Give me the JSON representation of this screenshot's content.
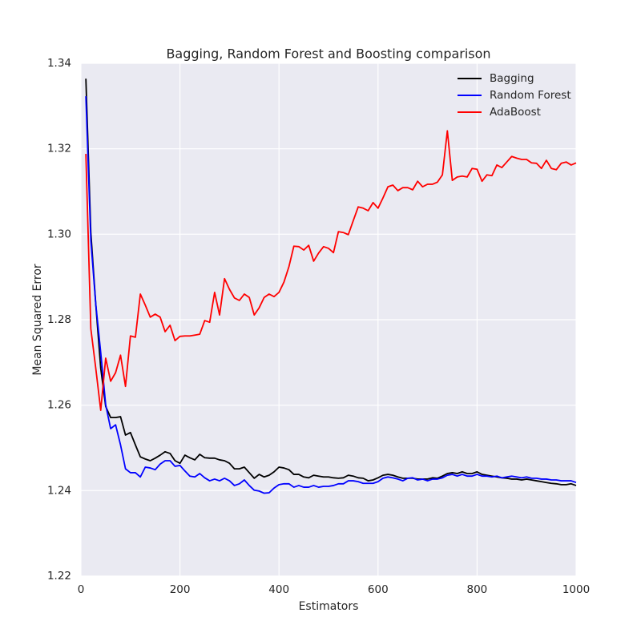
{
  "chart_data": {
    "type": "line",
    "title": "Bagging, Random Forest and Boosting comparison",
    "x_label": "Estimators",
    "y_label": "Mean Squared Error",
    "x": [
      10,
      20,
      30,
      40,
      50,
      60,
      70,
      80,
      90,
      100,
      110,
      120,
      130,
      140,
      150,
      160,
      170,
      180,
      190,
      200,
      210,
      220,
      230,
      240,
      250,
      260,
      270,
      280,
      290,
      300,
      310,
      320,
      330,
      340,
      350,
      360,
      370,
      380,
      390,
      400,
      410,
      420,
      430,
      440,
      450,
      460,
      470,
      480,
      490,
      500,
      510,
      520,
      530,
      540,
      550,
      560,
      570,
      580,
      590,
      600,
      610,
      620,
      630,
      640,
      650,
      660,
      670,
      680,
      690,
      700,
      710,
      720,
      730,
      740,
      750,
      760,
      770,
      780,
      790,
      800,
      810,
      820,
      830,
      840,
      850,
      860,
      870,
      880,
      890,
      900,
      910,
      920,
      930,
      940,
      950,
      960,
      970,
      980,
      990,
      1000
    ],
    "series": [
      {
        "name": "Bagging",
        "color": "#000000",
        "values": [
          1.3364,
          1.3004,
          1.2836,
          1.2686,
          1.2597,
          1.2571,
          1.2571,
          1.2573,
          1.253,
          1.2536,
          1.2507,
          1.2479,
          1.2474,
          1.247,
          1.2476,
          1.2483,
          1.2491,
          1.2487,
          1.247,
          1.2464,
          1.2483,
          1.2477,
          1.2472,
          1.2485,
          1.2477,
          1.2476,
          1.2476,
          1.2472,
          1.247,
          1.2464,
          1.2451,
          1.2451,
          1.2455,
          1.2442,
          1.2429,
          1.2438,
          1.2432,
          1.2436,
          1.2444,
          1.2455,
          1.2453,
          1.2449,
          1.2438,
          1.2438,
          1.2432,
          1.243,
          1.2436,
          1.2434,
          1.2432,
          1.2432,
          1.243,
          1.2429,
          1.243,
          1.2436,
          1.2434,
          1.243,
          1.2429,
          1.2423,
          1.2425,
          1.243,
          1.2436,
          1.2438,
          1.2436,
          1.2432,
          1.2429,
          1.2429,
          1.2429,
          1.2427,
          1.2427,
          1.2427,
          1.243,
          1.2429,
          1.2434,
          1.244,
          1.2442,
          1.244,
          1.2444,
          1.244,
          1.244,
          1.2444,
          1.2438,
          1.2436,
          1.2434,
          1.2432,
          1.243,
          1.2429,
          1.2427,
          1.2427,
          1.2425,
          1.2427,
          1.2425,
          1.2423,
          1.2421,
          1.2419,
          1.2417,
          1.2416,
          1.2414,
          1.2414,
          1.2416,
          1.2412
        ]
      },
      {
        "name": "Random Forest",
        "color": "#0000ff",
        "values": [
          1.3323,
          1.2986,
          1.2836,
          1.2723,
          1.2601,
          1.2545,
          1.2554,
          1.2507,
          1.2451,
          1.2442,
          1.2442,
          1.2432,
          1.2455,
          1.2453,
          1.2449,
          1.2462,
          1.247,
          1.247,
          1.2457,
          1.2459,
          1.2446,
          1.2434,
          1.2432,
          1.244,
          1.243,
          1.2423,
          1.2427,
          1.2423,
          1.2429,
          1.2423,
          1.2412,
          1.2416,
          1.2425,
          1.2412,
          1.2401,
          1.2399,
          1.2394,
          1.2395,
          1.2406,
          1.2414,
          1.2416,
          1.2416,
          1.2408,
          1.2412,
          1.2408,
          1.2408,
          1.2412,
          1.2408,
          1.241,
          1.241,
          1.2412,
          1.2416,
          1.2416,
          1.2423,
          1.2423,
          1.2421,
          1.2417,
          1.2417,
          1.2417,
          1.2421,
          1.2429,
          1.2432,
          1.243,
          1.2427,
          1.2423,
          1.2429,
          1.243,
          1.2425,
          1.2427,
          1.2423,
          1.2427,
          1.2427,
          1.243,
          1.2436,
          1.2438,
          1.2434,
          1.2438,
          1.2434,
          1.2434,
          1.2438,
          1.2434,
          1.2434,
          1.2432,
          1.2434,
          1.243,
          1.2432,
          1.2434,
          1.2432,
          1.243,
          1.2432,
          1.2429,
          1.2429,
          1.2427,
          1.2427,
          1.2425,
          1.2425,
          1.2423,
          1.2423,
          1.2423,
          1.2419
        ]
      },
      {
        "name": "AdaBoost",
        "color": "#ff0000",
        "values": [
          1.3188,
          1.2779,
          1.2686,
          1.2588,
          1.271,
          1.2656,
          1.2676,
          1.2717,
          1.2644,
          1.2762,
          1.2759,
          1.286,
          1.2834,
          1.2806,
          1.2813,
          1.2806,
          1.2772,
          1.2787,
          1.2751,
          1.2761,
          1.2762,
          1.2762,
          1.2764,
          1.2766,
          1.2798,
          1.2794,
          1.2864,
          1.2811,
          1.2896,
          1.2871,
          1.2851,
          1.2845,
          1.286,
          1.2852,
          1.2811,
          1.2828,
          1.2852,
          1.286,
          1.2854,
          1.2864,
          1.2888,
          1.2924,
          1.2972,
          1.2971,
          1.2963,
          1.2974,
          1.2937,
          1.2956,
          1.2971,
          1.2967,
          1.2957,
          1.3006,
          1.3004,
          1.2999,
          1.3032,
          1.3064,
          1.3061,
          1.3055,
          1.3074,
          1.3061,
          1.3085,
          1.3111,
          1.3115,
          1.3102,
          1.3109,
          1.3109,
          1.3104,
          1.3124,
          1.3111,
          1.3117,
          1.3117,
          1.3122,
          1.3139,
          1.3242,
          1.3126,
          1.3134,
          1.3136,
          1.3134,
          1.3154,
          1.3152,
          1.3124,
          1.3139,
          1.3137,
          1.3162,
          1.3156,
          1.3169,
          1.3182,
          1.3178,
          1.3175,
          1.3175,
          1.3167,
          1.3166,
          1.3154,
          1.3173,
          1.3154,
          1.3151,
          1.3166,
          1.3169,
          1.3162,
          1.3167
        ]
      }
    ],
    "xlim": [
      0,
      1000
    ],
    "xticks": [
      0,
      200,
      400,
      600,
      800,
      1000
    ],
    "ylim": [
      1.22,
      1.34
    ],
    "yticks": [
      1.22,
      1.24,
      1.26,
      1.28,
      {
        "value": 1.3,
        "label": "1.30"
      },
      1.32,
      1.34
    ],
    "grid": true,
    "legend": "upper right"
  }
}
